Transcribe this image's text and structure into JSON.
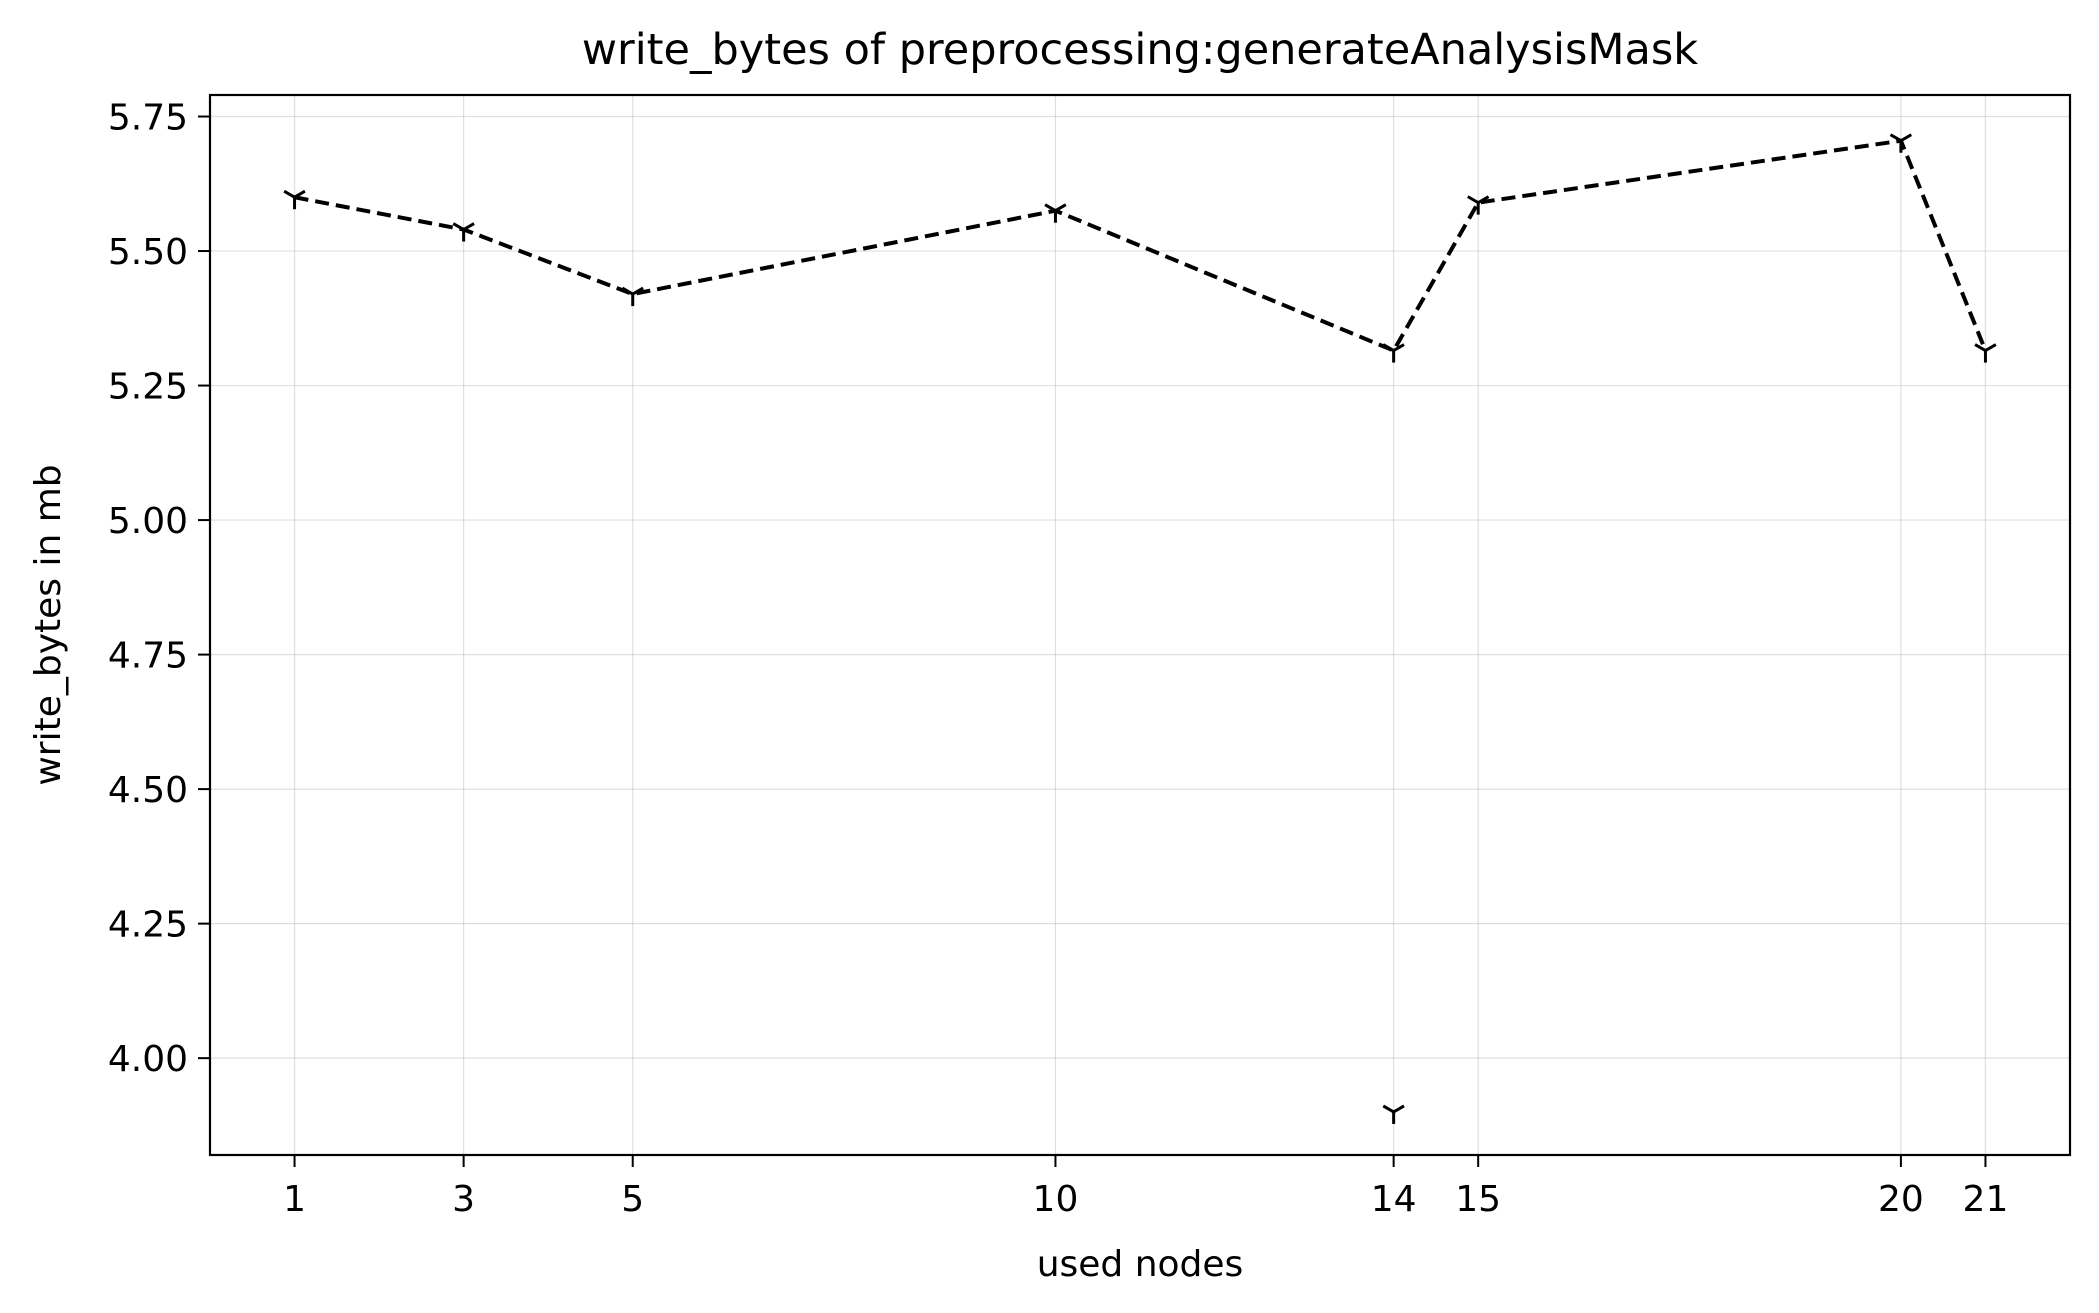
{
  "chart_data": {
    "type": "line",
    "title": "write_bytes of preprocessing:generateAnalysisMask",
    "xlabel": "used nodes",
    "ylabel": "write_bytes in mb",
    "xlim": [
      -0.0,
      22.0
    ],
    "ylim": [
      3.82,
      5.79
    ],
    "xticks": [
      1,
      3,
      5,
      10,
      14,
      15,
      20,
      21
    ],
    "xtick_labels": [
      "1",
      "3",
      "5",
      "10",
      "14",
      "15",
      "20",
      "21"
    ],
    "yticks": [
      4.0,
      4.25,
      4.5,
      4.75,
      5.0,
      5.25,
      5.5,
      5.75
    ],
    "ytick_labels": [
      "4.00",
      "4.25",
      "4.50",
      "4.75",
      "5.00",
      "5.25",
      "5.50",
      "5.75"
    ],
    "grid": true,
    "series": [
      {
        "line_style": "dashed",
        "marker": "tri_down",
        "color": "#000000",
        "x": [
          1,
          3,
          5,
          10,
          14,
          15,
          20,
          21
        ],
        "values": [
          5.6,
          5.54,
          5.42,
          5.575,
          5.315,
          5.59,
          5.705,
          5.315
        ]
      }
    ],
    "extra_points": [
      {
        "x": 14,
        "y": 3.9,
        "marker": "tri_down",
        "color": "#000000"
      }
    ]
  }
}
